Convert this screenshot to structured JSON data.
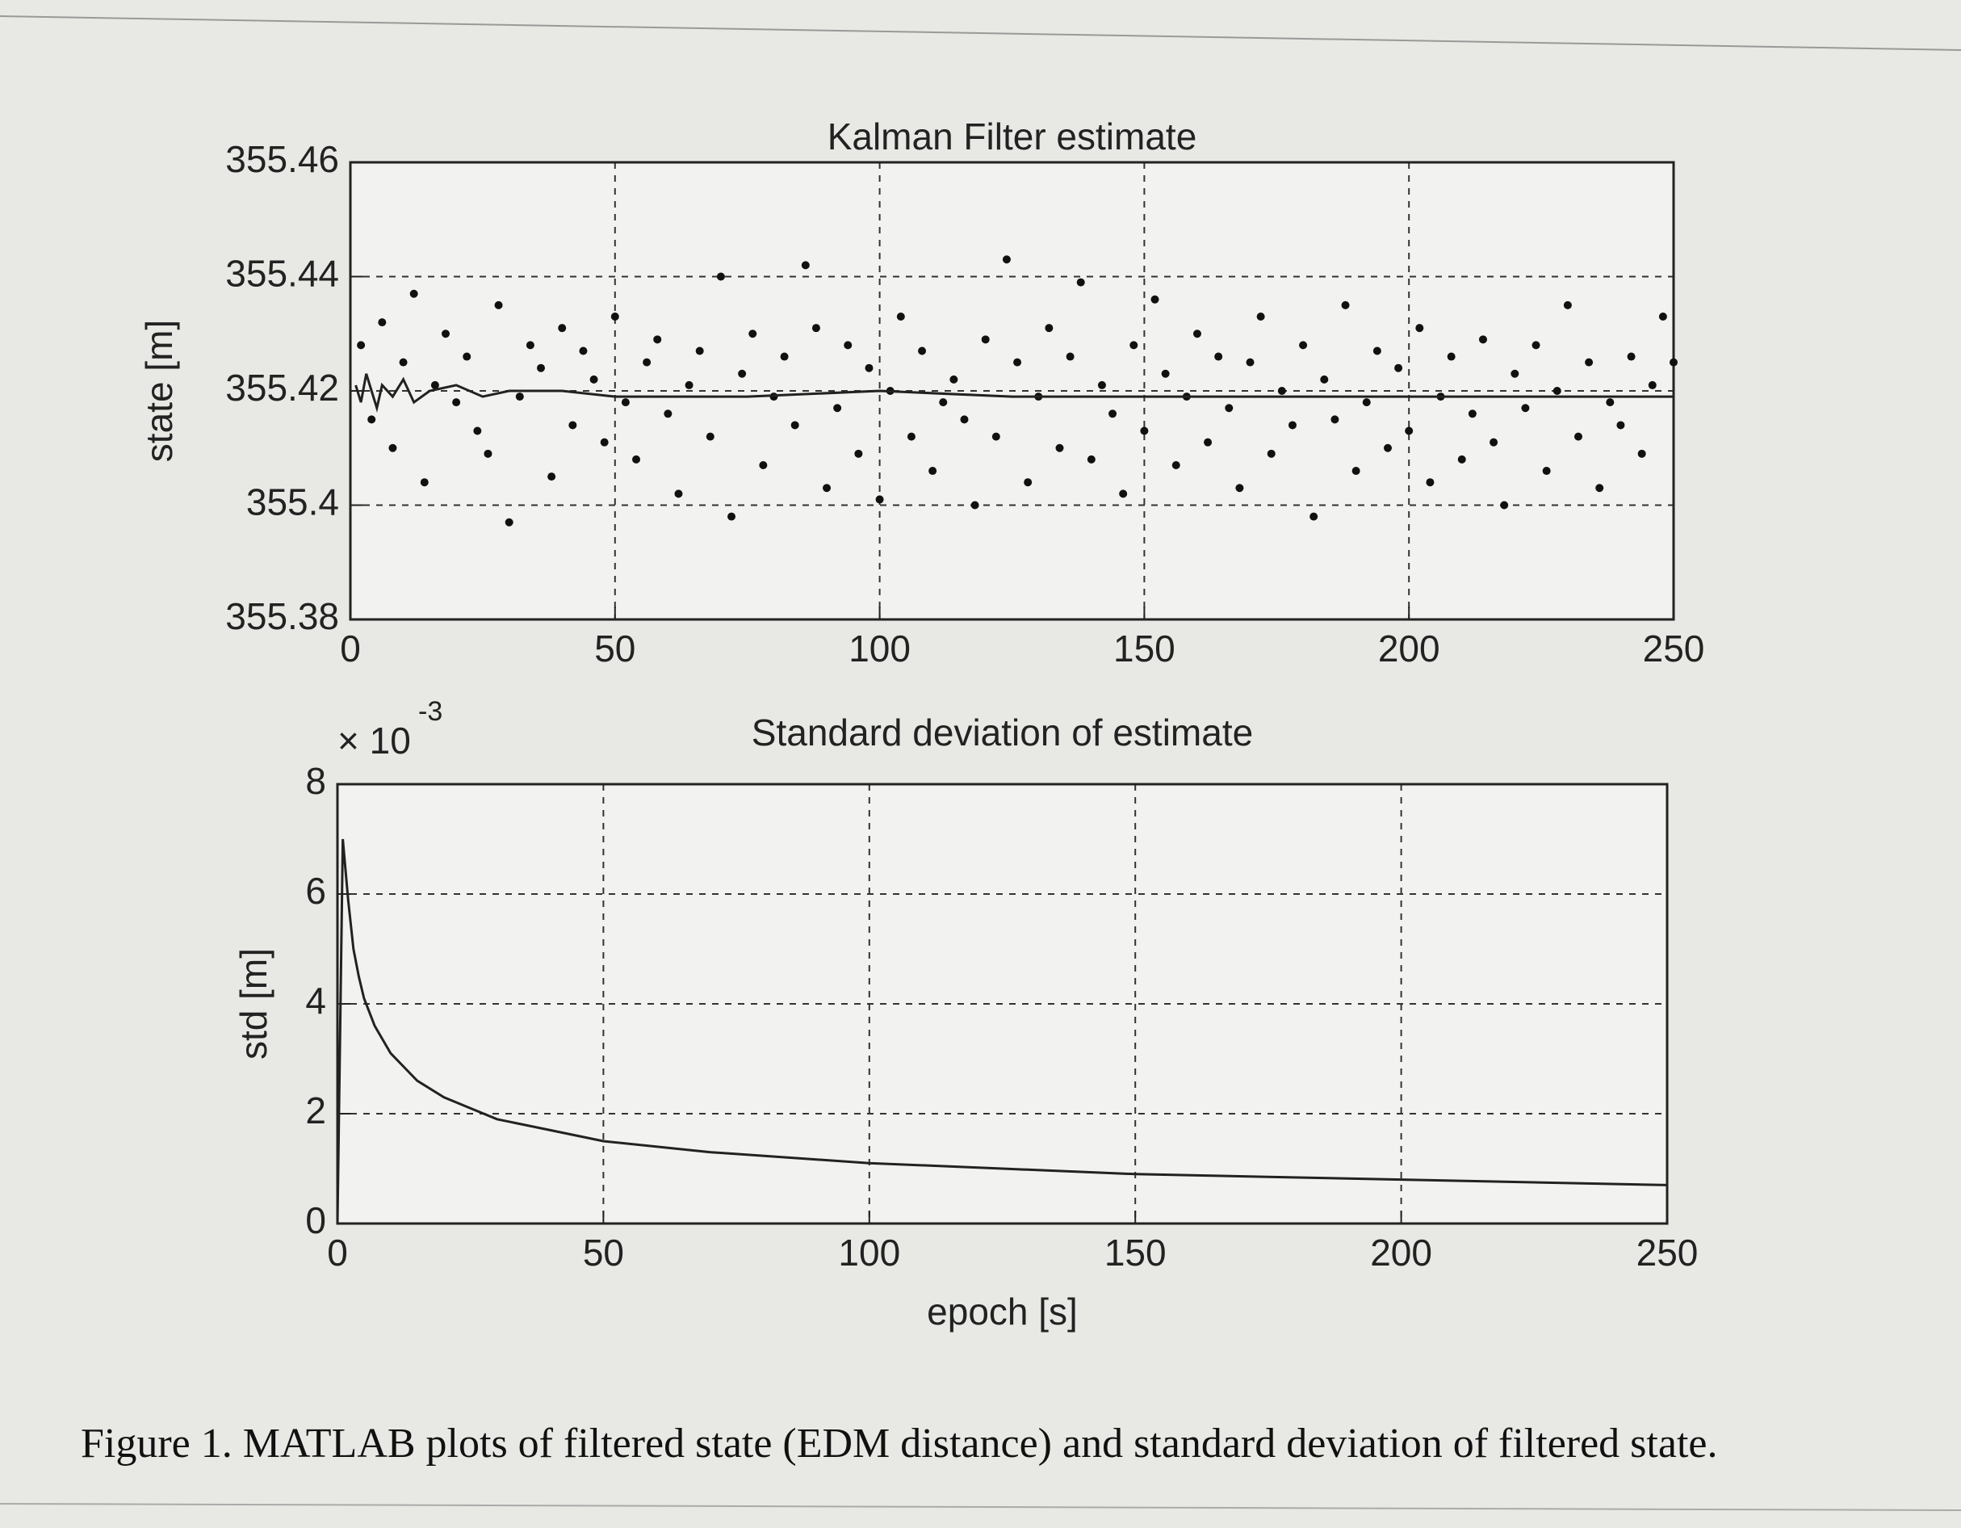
{
  "chart_data": [
    {
      "type": "scatter",
      "title": "Kalman Filter estimate",
      "ylabel": "state [m]",
      "xlim": [
        0,
        250
      ],
      "xticks": [
        0,
        50,
        100,
        150,
        200,
        250
      ],
      "ylim": [
        355.38,
        355.46
      ],
      "yticks": [
        355.38,
        355.4,
        355.42,
        355.44,
        355.46
      ],
      "grid": true,
      "series": [
        {
          "style": "markers",
          "color": "#111111",
          "x": [
            2,
            4,
            6,
            8,
            10,
            12,
            14,
            16,
            18,
            20,
            22,
            24,
            26,
            28,
            30,
            32,
            34,
            36,
            38,
            40,
            42,
            44,
            46,
            48,
            50,
            52,
            54,
            56,
            58,
            60,
            62,
            64,
            66,
            68,
            70,
            72,
            74,
            76,
            78,
            80,
            82,
            84,
            86,
            88,
            90,
            92,
            94,
            96,
            98,
            100,
            102,
            104,
            106,
            108,
            110,
            112,
            114,
            116,
            118,
            120,
            122,
            124,
            126,
            128,
            130,
            132,
            134,
            136,
            138,
            140,
            142,
            144,
            146,
            148,
            150,
            152,
            154,
            156,
            158,
            160,
            162,
            164,
            166,
            168,
            170,
            172,
            174,
            176,
            178,
            180,
            182,
            184,
            186,
            188,
            190,
            192,
            194,
            196,
            198,
            200,
            202,
            204,
            206,
            208,
            210,
            212,
            214,
            216,
            218,
            220,
            222,
            224,
            226,
            228,
            230,
            232,
            234,
            236,
            238,
            240,
            242,
            244,
            246,
            248,
            250
          ],
          "values": [
            355.428,
            355.415,
            355.432,
            355.41,
            355.425,
            355.437,
            355.404,
            355.421,
            355.43,
            355.418,
            355.426,
            355.413,
            355.409,
            355.435,
            355.397,
            355.419,
            355.428,
            355.424,
            355.405,
            355.431,
            355.414,
            355.427,
            355.422,
            355.411,
            355.433,
            355.418,
            355.408,
            355.425,
            355.429,
            355.416,
            355.402,
            355.421,
            355.427,
            355.412,
            355.44,
            355.398,
            355.423,
            355.43,
            355.407,
            355.419,
            355.426,
            355.414,
            355.442,
            355.431,
            355.403,
            355.417,
            355.428,
            355.409,
            355.424,
            355.401,
            355.42,
            355.433,
            355.412,
            355.427,
            355.406,
            355.418,
            355.422,
            355.415,
            355.4,
            355.429,
            355.412,
            355.443,
            355.425,
            355.404,
            355.419,
            355.431,
            355.41,
            355.426,
            355.439,
            355.408,
            355.421,
            355.416,
            355.402,
            355.428,
            355.413,
            355.436,
            355.423,
            355.407,
            355.419,
            355.43,
            355.411,
            355.426,
            355.417,
            355.403,
            355.425,
            355.433,
            355.409,
            355.42,
            355.414,
            355.428,
            355.398,
            355.422,
            355.415,
            355.435,
            355.406,
            355.418,
            355.427,
            355.41,
            355.424,
            355.413,
            355.431,
            355.404,
            355.419,
            355.426,
            355.408,
            355.416,
            355.429,
            355.411,
            355.4,
            355.423,
            355.417,
            355.428,
            355.406,
            355.42,
            355.435,
            355.412,
            355.425,
            355.403,
            355.418,
            355.414,
            355.426,
            355.409,
            355.421,
            355.433,
            355.425
          ]
        },
        {
          "style": "line",
          "color": "#222222",
          "x": [
            1,
            2,
            3,
            4,
            5,
            6,
            8,
            10,
            12,
            15,
            20,
            25,
            30,
            40,
            50,
            75,
            100,
            125,
            150,
            175,
            200,
            225,
            250
          ],
          "values": [
            355.421,
            355.418,
            355.423,
            355.42,
            355.417,
            355.421,
            355.419,
            355.422,
            355.418,
            355.42,
            355.421,
            355.419,
            355.42,
            355.42,
            355.419,
            355.419,
            355.42,
            355.419,
            355.419,
            355.419,
            355.419,
            355.419,
            355.419
          ]
        }
      ]
    },
    {
      "type": "line",
      "title": "Standard deviation of estimate",
      "xlabel": "epoch [s]",
      "ylabel": "std [m]",
      "y_multiplier": "× 10",
      "y_multiplier_exponent": "-3",
      "xlim": [
        0,
        250
      ],
      "xticks": [
        0,
        50,
        100,
        150,
        200,
        250
      ],
      "ylim": [
        0,
        8
      ],
      "yticks": [
        0,
        2,
        4,
        6,
        8
      ],
      "grid": true,
      "series": [
        {
          "style": "line",
          "color": "#222222",
          "x": [
            0,
            1,
            2,
            3,
            4,
            5,
            7,
            10,
            15,
            20,
            25,
            30,
            40,
            50,
            70,
            100,
            125,
            150,
            175,
            200,
            225,
            250
          ],
          "values": [
            0,
            7,
            5.9,
            5.0,
            4.5,
            4.1,
            3.6,
            3.1,
            2.6,
            2.3,
            2.1,
            1.9,
            1.7,
            1.5,
            1.3,
            1.1,
            1.0,
            0.9,
            0.85,
            0.8,
            0.75,
            0.7
          ]
        }
      ]
    }
  ],
  "caption": "Figure 1.  MATLAB plots of filtered state (EDM distance) and standard deviation of filtered state."
}
